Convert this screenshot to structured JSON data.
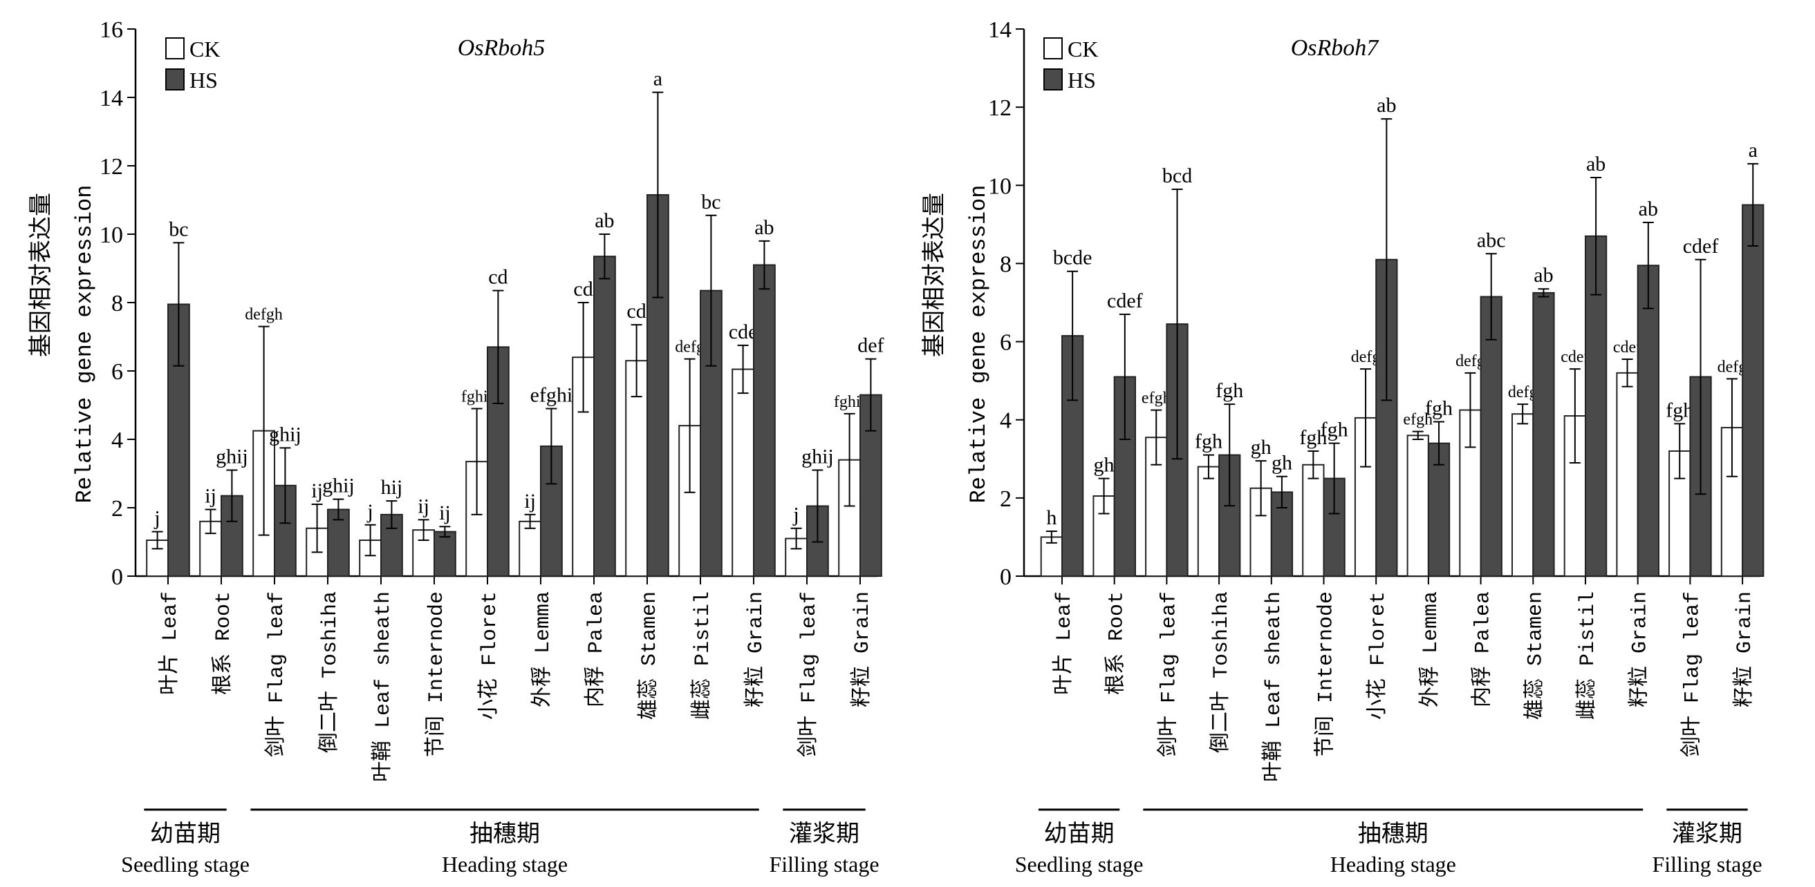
{
  "chart_data": [
    {
      "type": "bar",
      "title": "OsRboh5",
      "ylabel_cn": "基因相对表达量",
      "ylabel": "Relative gene expression",
      "xlabel": "",
      "ylim": [
        0,
        16
      ],
      "yticks": [
        0,
        2,
        4,
        6,
        8,
        10,
        12,
        14,
        16
      ],
      "grid": false,
      "legend_position": "top-left",
      "categories": [
        "叶片 Leaf",
        "根系 Root",
        "剑叶 Flag leaf",
        "倒二叶 Toshiha",
        "叶鞘 Leaf sheath",
        "节间 Internode",
        "小花 Floret",
        "外稃 Lemma",
        "内稃 Palea",
        "雄蕊 Stamen",
        "雌蕊 Pistil",
        "籽粒 Grain",
        "剑叶 Flag leaf",
        "籽粒 Grain"
      ],
      "series": [
        {
          "name": "CK",
          "color": "#ffffff",
          "values": [
            1.05,
            1.6,
            4.25,
            1.4,
            1.05,
            1.35,
            3.35,
            1.6,
            6.4,
            6.3,
            4.4,
            6.05,
            1.1,
            3.4
          ],
          "errors": [
            0.25,
            0.35,
            3.05,
            0.7,
            0.45,
            0.3,
            1.55,
            0.2,
            1.6,
            1.05,
            1.95,
            0.7,
            0.3,
            1.35
          ],
          "letters": [
            "j",
            "ij",
            "defgh",
            "ij",
            "j",
            "ij",
            "fghij",
            "ij",
            "cd",
            "cd",
            "defg",
            "cde",
            "j",
            "fghij"
          ]
        },
        {
          "name": "HS",
          "color": "#4a4a4a",
          "values": [
            7.95,
            2.35,
            2.65,
            1.95,
            1.8,
            1.3,
            6.7,
            3.8,
            9.35,
            11.15,
            8.35,
            9.1,
            2.05,
            5.3
          ],
          "errors": [
            1.8,
            0.75,
            1.1,
            0.3,
            0.4,
            0.15,
            1.65,
            1.1,
            0.65,
            3.0,
            2.2,
            0.7,
            1.05,
            1.05
          ],
          "letters": [
            "bc",
            "ghij",
            "ghij",
            "ghij",
            "hij",
            "ij",
            "cd",
            "efghi",
            "ab",
            "a",
            "bc",
            "ab",
            "ghij",
            "def"
          ]
        }
      ],
      "stages": [
        {
          "cn": "幼苗期",
          "en": "Seedling stage",
          "from": 0,
          "to": 1
        },
        {
          "cn": "抽穗期",
          "en": "Heading stage",
          "from": 2,
          "to": 11
        },
        {
          "cn": "灌浆期",
          "en": "Filling stage",
          "from": 12,
          "to": 13
        }
      ]
    },
    {
      "type": "bar",
      "title": "OsRboh7",
      "ylabel_cn": "基因相对表达量",
      "ylabel": "Relative gene expression",
      "xlabel": "",
      "ylim": [
        0,
        14
      ],
      "yticks": [
        0,
        2,
        4,
        6,
        8,
        10,
        12,
        14
      ],
      "grid": false,
      "legend_position": "top-left",
      "categories": [
        "叶片 Leaf",
        "根系 Root",
        "剑叶 Flag leaf",
        "倒二叶 Toshiha",
        "叶鞘 Leaf sheath",
        "节间 Internode",
        "小花 Floret",
        "外稃 Lemma",
        "内稃 Palea",
        "雄蕊 Stamen",
        "雌蕊 Pistil",
        "籽粒 Grain",
        "剑叶 Flag leaf",
        "籽粒 Grain"
      ],
      "series": [
        {
          "name": "CK",
          "color": "#ffffff",
          "values": [
            1.0,
            2.05,
            3.55,
            2.8,
            2.25,
            2.85,
            4.05,
            3.6,
            4.25,
            4.15,
            4.1,
            5.2,
            3.2,
            3.8
          ],
          "errors": [
            0.15,
            0.45,
            0.7,
            0.3,
            0.7,
            0.35,
            1.25,
            0.1,
            0.95,
            0.25,
            1.2,
            0.35,
            0.7,
            1.25
          ],
          "letters": [
            "h",
            "gh",
            "efgh",
            "fgh",
            "gh",
            "fgh",
            "defg",
            "efgh",
            "defg",
            "defg",
            "cdef",
            "cdef",
            "fgh",
            "defg"
          ]
        },
        {
          "name": "HS",
          "color": "#4a4a4a",
          "values": [
            6.15,
            5.1,
            6.45,
            3.1,
            2.15,
            2.5,
            8.1,
            3.4,
            7.15,
            7.25,
            8.7,
            7.95,
            5.1,
            9.5
          ],
          "errors": [
            1.65,
            1.6,
            3.45,
            1.3,
            0.4,
            0.9,
            3.6,
            0.55,
            1.1,
            0.1,
            1.5,
            1.1,
            3.0,
            1.05
          ],
          "letters": [
            "bcde",
            "cdef",
            "bcd",
            "fgh",
            "gh",
            "fgh",
            "ab",
            "fgh",
            "abc",
            "ab",
            "ab",
            "ab",
            "cdef",
            "a"
          ]
        }
      ],
      "stages": [
        {
          "cn": "幼苗期",
          "en": "Seedling stage",
          "from": 0,
          "to": 1
        },
        {
          "cn": "抽穗期",
          "en": "Heading stage",
          "from": 2,
          "to": 11
        },
        {
          "cn": "灌浆期",
          "en": "Filling stage",
          "from": 12,
          "to": 13
        }
      ]
    }
  ]
}
